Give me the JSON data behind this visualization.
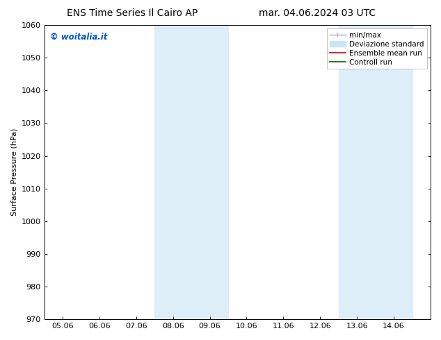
{
  "title_left": "ENS Time Series Il Cairo AP",
  "title_right": "mar. 04.06.2024 03 UTC",
  "ylabel": "Surface Pressure (hPa)",
  "ylim": [
    970,
    1060
  ],
  "yticks": [
    970,
    980,
    990,
    1000,
    1010,
    1020,
    1030,
    1040,
    1050,
    1060
  ],
  "xlim": [
    0,
    10.5
  ],
  "xtick_labels": [
    "05.06",
    "06.06",
    "07.06",
    "08.06",
    "09.06",
    "10.06",
    "11.06",
    "12.06",
    "13.06",
    "14.06"
  ],
  "xtick_positions": [
    0.5,
    1.5,
    2.5,
    3.5,
    4.5,
    5.5,
    6.5,
    7.5,
    8.5,
    9.5
  ],
  "shaded_bands": [
    {
      "x_start": 3.0,
      "x_end": 4.0,
      "color": "#ddeef8"
    },
    {
      "x_start": 4.0,
      "x_end": 5.0,
      "color": "#ddeef8"
    },
    {
      "x_start": 8.0,
      "x_end": 9.0,
      "color": "#ddeef8"
    },
    {
      "x_start": 9.0,
      "x_end": 10.0,
      "color": "#ddeef8"
    }
  ],
  "watermark_text": "© woitalia.it",
  "watermark_color": "#0055cc",
  "bg_color": "#ffffff",
  "spine_color": "#000000",
  "title_fontsize": 10,
  "tick_label_fontsize": 8,
  "ylabel_fontsize": 8,
  "legend_fontsize": 7.5,
  "minmax_color": "#aaaaaa",
  "devstd_color": "#cce5f5",
  "ens_color": "#dd0000",
  "ctrl_color": "#006600"
}
